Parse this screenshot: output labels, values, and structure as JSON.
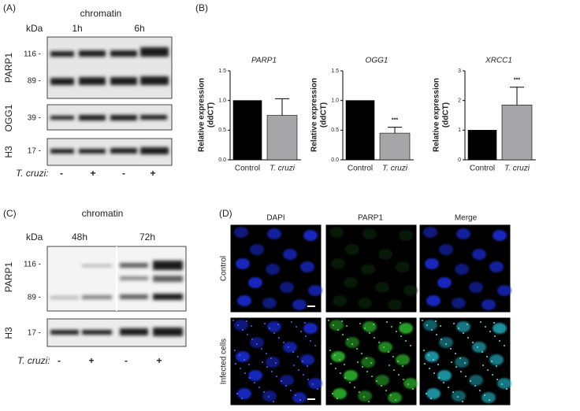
{
  "panel_a": {
    "label": "(A)",
    "title": "chromatin",
    "kda": "kDa",
    "times": [
      "1h",
      "6h"
    ],
    "blots": [
      {
        "name": "PARP1",
        "markers": [
          "116 -",
          "89 -"
        ]
      },
      {
        "name": "OGG1",
        "markers": [
          "39 -"
        ]
      },
      {
        "name": "H3",
        "markers": [
          "17 -"
        ]
      }
    ],
    "treatment": "T. cruzi:",
    "signs": [
      "-",
      "+",
      "-",
      "+"
    ]
  },
  "panel_b": {
    "label": "(B)"
  },
  "chart_data": [
    {
      "type": "bar",
      "title": "PARP1",
      "y_label": [
        "Relative expression",
        "(ddCT)"
      ],
      "categories": [
        "Control",
        "T. cruzi"
      ],
      "values": [
        1.0,
        0.75
      ],
      "errors": [
        null,
        0.28
      ],
      "colors": [
        "#000000",
        "#a6a6a8"
      ],
      "ylim": [
        0,
        1.5
      ],
      "yticks": [
        {
          "value": 0,
          "label": "0.0"
        },
        0.5,
        {
          "value": 1,
          "label": "1.0"
        },
        1.5
      ]
    },
    {
      "type": "bar",
      "title": "OGG1",
      "y_label": [
        "Relative expression",
        "(ddCT)"
      ],
      "categories": [
        "Control",
        "T. cruzi"
      ],
      "values": [
        1.0,
        0.45
      ],
      "errors": [
        null,
        0.1
      ],
      "significance": [
        null,
        "***"
      ],
      "colors": [
        "#000000",
        "#a6a6a8"
      ],
      "ylim": [
        0,
        1.5
      ],
      "yticks": [
        {
          "value": 0,
          "label": "0.0"
        },
        0.5,
        {
          "value": 1,
          "label": "1.0"
        },
        1.5
      ]
    },
    {
      "type": "bar",
      "title": "XRCC1",
      "y_label": [
        "Relative expression",
        "(ddCT)"
      ],
      "categories": [
        "Control",
        "T. cruzi"
      ],
      "values": [
        1.0,
        1.85
      ],
      "errors": [
        null,
        0.6
      ],
      "significance": [
        null,
        "***"
      ],
      "colors": [
        "#000000",
        "#a6a6a8"
      ],
      "ylim": [
        0,
        3
      ],
      "yticks": [
        0,
        1,
        2,
        3
      ]
    }
  ],
  "panel_c": {
    "label": "(C)",
    "title": "chromatin",
    "kda": "kDa",
    "times": [
      "48h",
      "72h"
    ],
    "blots": [
      {
        "name": "PARP1",
        "markers": [
          "116 -",
          "89 -"
        ]
      },
      {
        "name": "H3",
        "markers": [
          "17 -"
        ]
      }
    ],
    "treatment": "T. cruzi:",
    "signs": [
      "-",
      "+",
      "-",
      "+"
    ]
  },
  "panel_d": {
    "label": "(D)",
    "columns": [
      "DAPI",
      "PARP1",
      "Merge"
    ],
    "rows": [
      "Control",
      "Infected cells"
    ]
  }
}
